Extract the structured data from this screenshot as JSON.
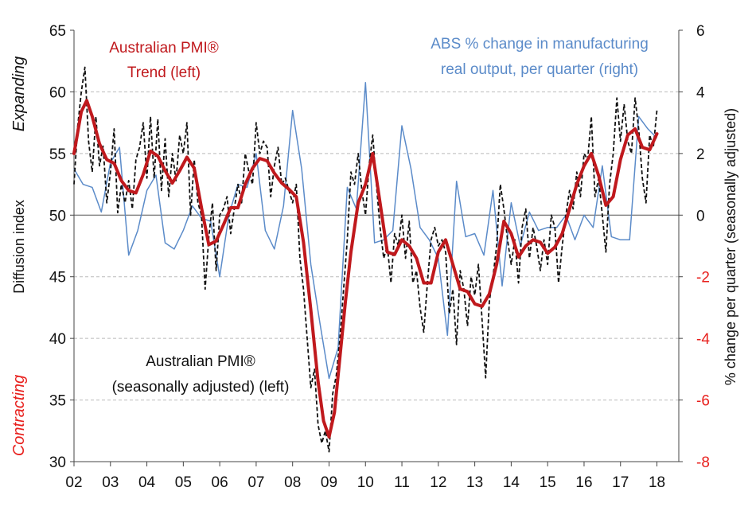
{
  "chart_data": {
    "type": "line",
    "x_ticks": [
      "02",
      "03",
      "04",
      "05",
      "06",
      "07",
      "08",
      "09",
      "10",
      "11",
      "12",
      "13",
      "14",
      "15",
      "16",
      "17",
      "18"
    ],
    "x_range": [
      2002.0,
      2018.6
    ],
    "y_left": {
      "label": "Diffusion index",
      "ylim": [
        30,
        65
      ],
      "ticks": [
        "30",
        "35",
        "40",
        "45",
        "50",
        "55",
        "60",
        "65"
      ]
    },
    "y_right": {
      "label": "% change per quarter (seasonally adjusted)",
      "ylim": [
        -8,
        6
      ],
      "ticks": [
        "-8",
        "-6",
        "-4",
        "-2",
        "0",
        "2",
        "4",
        "6"
      ],
      "negative_tick_color": "#e8201d"
    },
    "zero_line_left": 50,
    "grid": true,
    "annotations": {
      "expanding": "Expanding",
      "contracting": "Contracting",
      "trend_line1": "Australian PMI®",
      "trend_line2": "Trend (left)",
      "abs_line1": "ABS % change in manufacturing",
      "abs_line2": "real output, per quarter (right)",
      "sa_line1": "Australian PMI®",
      "sa_line2": "(seasonally adjusted) (left)"
    },
    "series": [
      {
        "name": "Australian PMI® Trend (left)",
        "axis": "left",
        "color": "#c0191d",
        "style": "solid-thick",
        "x": [
          2002.0,
          2002.2,
          2002.35,
          2002.5,
          2002.7,
          2002.9,
          2003.1,
          2003.3,
          2003.5,
          2003.7,
          2003.9,
          2004.1,
          2004.3,
          2004.5,
          2004.7,
          2004.9,
          2005.1,
          2005.3,
          2005.5,
          2005.7,
          2005.9,
          2006.1,
          2006.3,
          2006.5,
          2006.7,
          2006.9,
          2007.1,
          2007.3,
          2007.5,
          2007.7,
          2007.9,
          2008.1,
          2008.3,
          2008.5,
          2008.7,
          2008.85,
          2009.0,
          2009.15,
          2009.3,
          2009.45,
          2009.6,
          2009.8,
          2010.0,
          2010.2,
          2010.4,
          2010.6,
          2010.8,
          2011.0,
          2011.2,
          2011.4,
          2011.6,
          2011.8,
          2012.0,
          2012.2,
          2012.4,
          2012.6,
          2012.8,
          2013.0,
          2013.2,
          2013.4,
          2013.6,
          2013.8,
          2014.0,
          2014.2,
          2014.4,
          2014.6,
          2014.8,
          2015.0,
          2015.2,
          2015.4,
          2015.6,
          2015.8,
          2016.0,
          2016.2,
          2016.4,
          2016.6,
          2016.8,
          2017.0,
          2017.2,
          2017.4,
          2017.6,
          2017.8,
          2018.0
        ],
        "values": [
          55.0,
          58.4,
          59.3,
          58.0,
          55.8,
          54.5,
          54.2,
          52.8,
          52.0,
          51.8,
          53.3,
          55.2,
          54.8,
          53.6,
          52.6,
          53.6,
          54.7,
          53.8,
          50.6,
          47.6,
          47.9,
          49.2,
          50.6,
          50.6,
          52.5,
          53.8,
          54.6,
          54.4,
          53.4,
          52.6,
          52.1,
          51.5,
          47.8,
          42.3,
          36.5,
          33.3,
          32.0,
          34.0,
          38.5,
          43.0,
          47.0,
          51.0,
          52.5,
          55.0,
          51.0,
          47.0,
          46.8,
          48.0,
          47.5,
          46.5,
          44.5,
          44.5,
          47.0,
          48.0,
          46.0,
          44.0,
          43.8,
          42.8,
          42.6,
          43.6,
          46.0,
          49.5,
          48.5,
          46.6,
          47.5,
          48.0,
          47.8,
          46.9,
          47.4,
          48.5,
          50.5,
          52.5,
          54.0,
          55.0,
          53.2,
          50.8,
          51.5,
          54.5,
          56.5,
          57.0,
          55.5,
          55.3,
          56.6
        ]
      },
      {
        "name": "Australian PMI® (seasonally adjusted) (left)",
        "axis": "left",
        "color": "#111111",
        "style": "dashed",
        "x": [
          2002.0,
          2002.1,
          2002.2,
          2002.3,
          2002.4,
          2002.5,
          2002.6,
          2002.7,
          2002.8,
          2002.9,
          2003.0,
          2003.1,
          2003.2,
          2003.3,
          2003.4,
          2003.5,
          2003.6,
          2003.7,
          2003.8,
          2003.9,
          2004.0,
          2004.1,
          2004.2,
          2004.3,
          2004.4,
          2004.5,
          2004.6,
          2004.7,
          2004.8,
          2004.9,
          2005.0,
          2005.1,
          2005.2,
          2005.3,
          2005.4,
          2005.5,
          2005.6,
          2005.7,
          2005.8,
          2005.9,
          2006.0,
          2006.1,
          2006.2,
          2006.3,
          2006.4,
          2006.5,
          2006.6,
          2006.7,
          2006.8,
          2006.9,
          2007.0,
          2007.1,
          2007.2,
          2007.3,
          2007.4,
          2007.5,
          2007.6,
          2007.7,
          2007.8,
          2007.9,
          2008.0,
          2008.1,
          2008.2,
          2008.3,
          2008.4,
          2008.5,
          2008.6,
          2008.7,
          2008.8,
          2008.9,
          2009.0,
          2009.1,
          2009.2,
          2009.3,
          2009.4,
          2009.5,
          2009.6,
          2009.7,
          2009.8,
          2009.9,
          2010.0,
          2010.1,
          2010.2,
          2010.3,
          2010.4,
          2010.5,
          2010.6,
          2010.7,
          2010.8,
          2010.9,
          2011.0,
          2011.1,
          2011.2,
          2011.3,
          2011.4,
          2011.5,
          2011.6,
          2011.7,
          2011.8,
          2011.9,
          2012.0,
          2012.1,
          2012.2,
          2012.3,
          2012.4,
          2012.5,
          2012.6,
          2012.7,
          2012.8,
          2012.9,
          2013.0,
          2013.1,
          2013.2,
          2013.3,
          2013.4,
          2013.5,
          2013.6,
          2013.7,
          2013.8,
          2013.9,
          2014.0,
          2014.1,
          2014.2,
          2014.3,
          2014.4,
          2014.5,
          2014.6,
          2014.7,
          2014.8,
          2014.9,
          2015.0,
          2015.1,
          2015.2,
          2015.3,
          2015.4,
          2015.5,
          2015.6,
          2015.7,
          2015.8,
          2015.9,
          2016.0,
          2016.1,
          2016.2,
          2016.3,
          2016.4,
          2016.5,
          2016.6,
          2016.7,
          2016.8,
          2016.9,
          2017.0,
          2017.1,
          2017.2,
          2017.3,
          2017.4,
          2017.5,
          2017.6,
          2017.7,
          2017.8,
          2017.9,
          2018.0
        ],
        "values": [
          52.5,
          57.2,
          60.0,
          62.0,
          56.0,
          53.5,
          58.0,
          54.0,
          55.6,
          51.0,
          53.5,
          57.0,
          50.2,
          52.5,
          51.0,
          52.8,
          50.5,
          54.5,
          55.5,
          57.5,
          53.0,
          58.0,
          53.0,
          57.8,
          52.0,
          56.2,
          51.5,
          55.0,
          52.8,
          56.5,
          55.0,
          57.5,
          50.0,
          54.5,
          51.0,
          50.0,
          44.0,
          48.2,
          51.0,
          45.5,
          50.0,
          50.5,
          51.5,
          48.5,
          50.5,
          52.5,
          51.0,
          55.0,
          53.5,
          52.5,
          57.5,
          55.0,
          56.0,
          55.5,
          51.5,
          54.0,
          55.5,
          52.5,
          53.0,
          52.0,
          51.0,
          52.5,
          46.5,
          44.0,
          40.0,
          36.0,
          37.5,
          33.0,
          31.5,
          32.5,
          30.8,
          35.5,
          37.0,
          40.0,
          44.0,
          48.0,
          53.5,
          52.5,
          55.0,
          52.0,
          50.0,
          54.0,
          56.5,
          52.5,
          49.0,
          46.5,
          47.5,
          44.5,
          48.5,
          47.5,
          50.0,
          46.5,
          49.5,
          44.5,
          45.5,
          42.5,
          40.5,
          44.5,
          48.0,
          49.0,
          47.5,
          48.0,
          47.0,
          42.0,
          44.0,
          39.5,
          45.5,
          44.0,
          41.0,
          45.0,
          43.5,
          46.0,
          41.5,
          36.8,
          43.0,
          45.0,
          47.5,
          52.5,
          50.5,
          48.0,
          46.0,
          48.0,
          44.5,
          49.0,
          50.5,
          46.5,
          49.0,
          47.5,
          45.5,
          48.0,
          46.0,
          50.0,
          49.0,
          44.5,
          47.5,
          50.0,
          52.0,
          50.5,
          53.5,
          51.5,
          55.0,
          54.5,
          58.0,
          51.5,
          53.0,
          50.0,
          47.0,
          52.5,
          55.0,
          59.5,
          56.0,
          59.0,
          56.0,
          55.0,
          59.5,
          57.0,
          53.0,
          51.0,
          56.5,
          55.5,
          58.5
        ]
      },
      {
        "name": "ABS % change in manufacturing real output, per quarter (right)",
        "axis": "right",
        "color": "#5b8bc9",
        "style": "solid-thin",
        "x": [
          2002.0,
          2002.25,
          2002.5,
          2002.75,
          2003.0,
          2003.25,
          2003.5,
          2003.75,
          2004.0,
          2004.25,
          2004.5,
          2004.75,
          2005.0,
          2005.25,
          2005.5,
          2005.75,
          2006.0,
          2006.25,
          2006.5,
          2006.75,
          2007.0,
          2007.25,
          2007.5,
          2007.75,
          2008.0,
          2008.25,
          2008.5,
          2008.75,
          2009.0,
          2009.25,
          2009.5,
          2009.75,
          2010.0,
          2010.25,
          2010.5,
          2010.75,
          2011.0,
          2011.25,
          2011.5,
          2011.75,
          2012.0,
          2012.25,
          2012.5,
          2012.75,
          2013.0,
          2013.25,
          2013.5,
          2013.75,
          2014.0,
          2014.25,
          2014.5,
          2014.75,
          2015.0,
          2015.25,
          2015.5,
          2015.75,
          2016.0,
          2016.25,
          2016.5,
          2016.75,
          2017.0,
          2017.25,
          2017.5,
          2017.75,
          2018.0
        ],
        "values": [
          1.5,
          1.0,
          0.9,
          0.1,
          1.7,
          2.2,
          -1.3,
          -0.5,
          0.8,
          1.3,
          -0.9,
          -1.1,
          -0.5,
          0.3,
          -0.1,
          -0.2,
          -2.0,
          0.0,
          1.0,
          0.9,
          2.0,
          -0.5,
          -1.1,
          0.3,
          3.4,
          1.5,
          -1.6,
          -3.5,
          -5.3,
          -4.3,
          0.9,
          0.2,
          4.3,
          -0.9,
          -0.8,
          -0.5,
          2.9,
          1.5,
          -0.4,
          -0.8,
          -1.4,
          -3.9,
          1.1,
          -0.7,
          -0.6,
          -1.3,
          0.8,
          -2.3,
          0.4,
          -1.0,
          0.1,
          -0.5,
          -0.4,
          -0.4,
          0.0,
          -0.8,
          0.0,
          -0.4,
          1.6,
          -0.7,
          -0.8,
          -0.8,
          3.2,
          2.8,
          2.5
        ]
      }
    ]
  }
}
